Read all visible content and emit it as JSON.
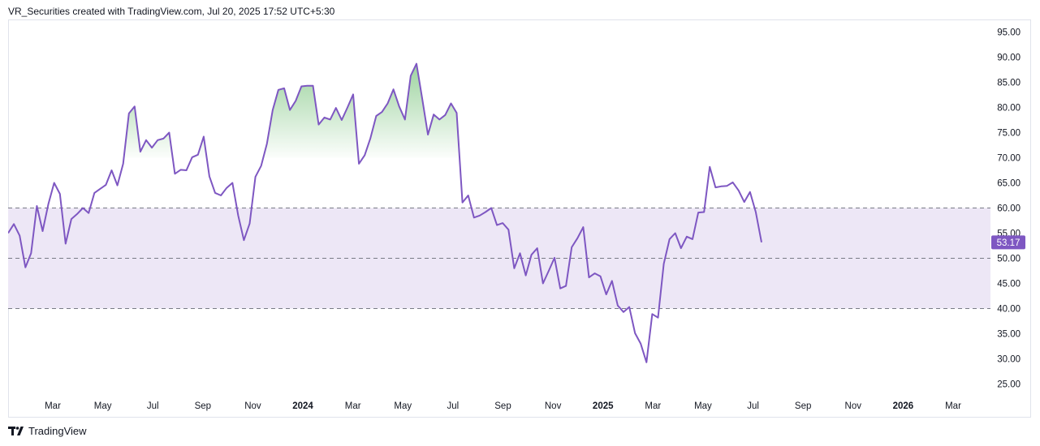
{
  "header": {
    "attribution": "VR_Securities created with TradingView.com, Jul 20, 2025 17:52 UTC+5:30"
  },
  "branding": {
    "name": "TradingView"
  },
  "colors": {
    "line": "#7e57c2",
    "band_fill": "#ede7f6",
    "overbought_fill": "#4caf50",
    "price_label_bg": "#7e57c2",
    "level_line": "#787b86"
  },
  "chart_data": {
    "type": "line",
    "indicator": "RSI",
    "ylim": [
      22.5,
      97.5
    ],
    "y_ticks": [
      "95.00",
      "90.00",
      "85.00",
      "80.00",
      "75.00",
      "70.00",
      "65.00",
      "60.00",
      "55.00",
      "50.00",
      "45.00",
      "40.00",
      "35.00",
      "30.00",
      "25.00"
    ],
    "levels": {
      "upper": 60,
      "middle": 50,
      "lower": 40
    },
    "overbought_shading_above": 70,
    "x_ticks": [
      {
        "label": "Mar",
        "year": false
      },
      {
        "label": "May",
        "year": false
      },
      {
        "label": "Jul",
        "year": false
      },
      {
        "label": "Sep",
        "year": false
      },
      {
        "label": "Nov",
        "year": false
      },
      {
        "label": "2024",
        "year": true
      },
      {
        "label": "Mar",
        "year": false
      },
      {
        "label": "May",
        "year": false
      },
      {
        "label": "Jul",
        "year": false
      },
      {
        "label": "Sep",
        "year": false
      },
      {
        "label": "Nov",
        "year": false
      },
      {
        "label": "2025",
        "year": true
      },
      {
        "label": "Mar",
        "year": false
      },
      {
        "label": "May",
        "year": false
      },
      {
        "label": "Jul",
        "year": false
      },
      {
        "label": "Sep",
        "year": false
      },
      {
        "label": "Nov",
        "year": false
      },
      {
        "label": "2026",
        "year": true
      },
      {
        "label": "Mar",
        "year": false
      }
    ],
    "last_value_label": "53.17",
    "values": [
      55.0,
      56.8,
      54.5,
      48.2,
      51.0,
      60.4,
      55.4,
      60.8,
      65.0,
      62.8,
      52.9,
      57.8,
      58.8,
      60.0,
      59.0,
      63.0,
      63.8,
      64.6,
      67.5,
      64.5,
      68.8,
      78.8,
      80.2,
      71.2,
      73.5,
      72.0,
      73.5,
      73.8,
      75.0,
      66.8,
      67.6,
      67.5,
      70.1,
      70.6,
      74.2,
      66.3,
      63.0,
      62.5,
      64.0,
      65.0,
      58.5,
      53.6,
      56.9,
      66.2,
      68.4,
      72.8,
      79.5,
      83.5,
      83.8,
      79.5,
      81.3,
      84.2,
      84.3,
      84.3,
      76.6,
      78.0,
      77.6,
      79.9,
      77.5,
      80.0,
      82.6,
      68.8,
      70.5,
      73.9,
      78.3,
      79.1,
      80.8,
      83.6,
      80.2,
      77.6,
      86.3,
      88.7,
      81.8,
      74.6,
      78.6,
      77.6,
      78.5,
      80.8,
      78.9,
      61.1,
      62.5,
      58.1,
      58.5,
      59.2,
      60.0,
      56.6,
      57.0,
      55.7,
      48.0,
      51.0,
      46.6,
      50.7,
      52.0,
      45.0,
      47.5,
      50.1,
      44.0,
      44.5,
      52.2,
      54.0,
      56.2,
      46.2,
      47.0,
      46.4,
      42.8,
      45.5,
      40.6,
      39.3,
      40.3,
      35.1,
      33.0,
      29.3,
      38.9,
      38.2,
      48.9,
      53.8,
      55.0,
      52.0,
      54.3,
      53.8,
      59.1,
      59.2,
      68.2,
      64.1,
      64.3,
      64.4,
      65.1,
      63.5,
      61.2,
      63.2,
      59.2,
      53.17
    ]
  }
}
